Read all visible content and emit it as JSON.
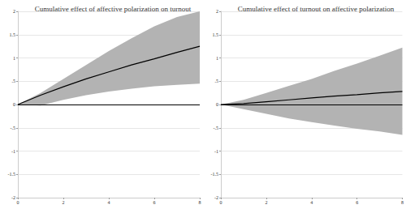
{
  "chart_data": [
    {
      "type": "line",
      "title": "Cumulative effect of affective polarization on turnout",
      "x": [
        0,
        1,
        2,
        3,
        4,
        5,
        6,
        7,
        8
      ],
      "series": [
        {
          "color": "#000000",
          "values": [
            0,
            0.2,
            0.38,
            0.55,
            0.7,
            0.85,
            0.98,
            1.12,
            1.25
          ],
          "lower": [
            0,
            -0.02,
            0.1,
            0.2,
            0.28,
            0.34,
            0.39,
            0.42,
            0.45
          ],
          "upper": [
            0,
            0.25,
            0.55,
            0.85,
            1.15,
            1.42,
            1.68,
            1.88,
            2.0
          ],
          "band_color": "#b3b3b3"
        }
      ],
      "hline": 0,
      "xlim": [
        0,
        8
      ],
      "xticks": [
        0,
        2,
        4,
        6,
        8
      ],
      "ylim": [
        -2,
        2
      ],
      "yticks": [
        {
          "value": -2,
          "label": "-2"
        },
        {
          "value": -1.5,
          "label": "-1.5"
        },
        {
          "value": -1,
          "label": "-1"
        },
        {
          "value": -0.5,
          "label": "-.5"
        },
        0,
        {
          "value": 0.5,
          "label": ".5"
        },
        1,
        {
          "value": 1.5,
          "label": "1.5"
        },
        2
      ],
      "grid": true
    },
    {
      "type": "line",
      "title": "Cumulative effect of turnout on affective polarization",
      "x": [
        0,
        1,
        2,
        3,
        4,
        5,
        6,
        7,
        8
      ],
      "series": [
        {
          "color": "#000000",
          "values": [
            0,
            0.02,
            0.06,
            0.1,
            0.14,
            0.18,
            0.21,
            0.25,
            0.28
          ],
          "lower": [
            0,
            -0.1,
            -0.2,
            -0.3,
            -0.38,
            -0.45,
            -0.52,
            -0.58,
            -0.65
          ],
          "upper": [
            0,
            0.1,
            0.25,
            0.4,
            0.55,
            0.72,
            0.88,
            1.05,
            1.22
          ],
          "band_color": "#b3b3b3"
        }
      ],
      "hline": 0,
      "xlim": [
        0,
        8
      ],
      "xticks": [
        0,
        2,
        4,
        6,
        8
      ],
      "ylim": [
        -2,
        2
      ],
      "yticks": [
        {
          "value": -2,
          "label": "-2"
        },
        {
          "value": -1.5,
          "label": "-1.5"
        },
        {
          "value": -1,
          "label": "-1"
        },
        {
          "value": -0.5,
          "label": "-.5"
        },
        0,
        {
          "value": 0.5,
          "label": ".5"
        },
        1,
        {
          "value": 1.5,
          "label": "1.5"
        },
        2
      ],
      "grid": true
    }
  ]
}
